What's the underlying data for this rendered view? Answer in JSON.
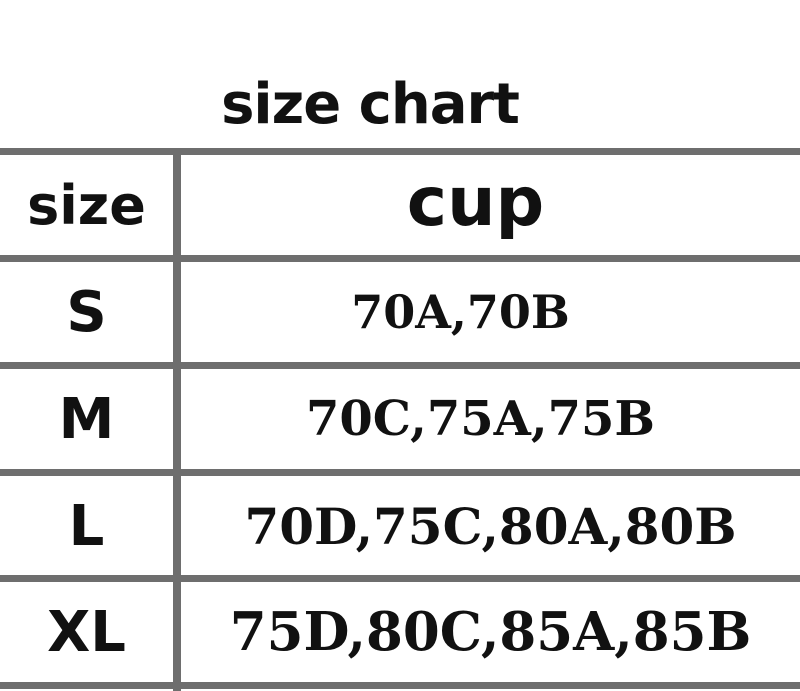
{
  "title": "size chart",
  "header": {
    "size": "size",
    "cup": "cup"
  },
  "rows": [
    {
      "size": "S",
      "cup": "70A,70B"
    },
    {
      "size": "M",
      "cup": "70C,75A,75B"
    },
    {
      "size": "L",
      "cup": "70D,75C,80A,80B"
    },
    {
      "size": "XL",
      "cup": "75D,80C,85A,85B"
    }
  ],
  "colors": {
    "grid": "#6e6e6e",
    "text": "#111111"
  }
}
